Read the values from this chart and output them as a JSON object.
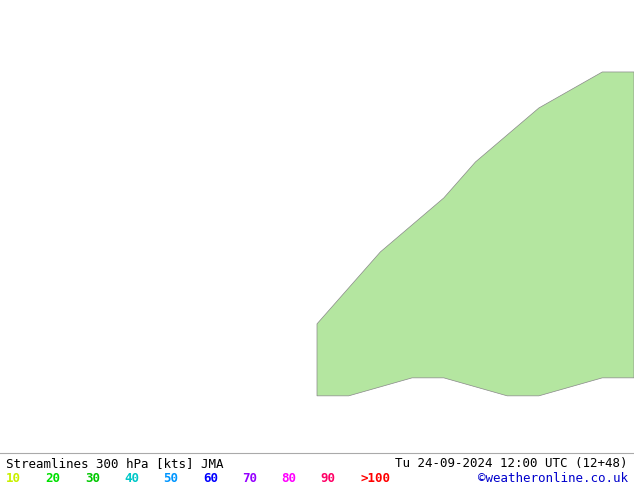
{
  "title_left": "Streamlines 300 hPa [kts] JMA",
  "title_right": "Tu 24-09-2024 12:00 UTC (12+48)",
  "credit": "©weatheronline.co.uk",
  "legend_values": [
    "10",
    "20",
    "30",
    "40",
    "50",
    "60",
    "70",
    "80",
    "90",
    ">100"
  ],
  "legend_colors": [
    "#c8f000",
    "#00e000",
    "#00c800",
    "#00c8c8",
    "#0096ff",
    "#0000ff",
    "#9600ff",
    "#ff00ff",
    "#ff0066",
    "#ff0000"
  ],
  "sea_color": "#e8e8e8",
  "land_color": "#b4e6a0",
  "border_color": "#888888",
  "fig_width": 6.34,
  "fig_height": 4.9,
  "dpi": 100,
  "bottom_bar_color": "#ffffff",
  "title_color": "#000000",
  "credit_color": "#0000cc",
  "title_fontsize": 9,
  "legend_fontsize": 9
}
